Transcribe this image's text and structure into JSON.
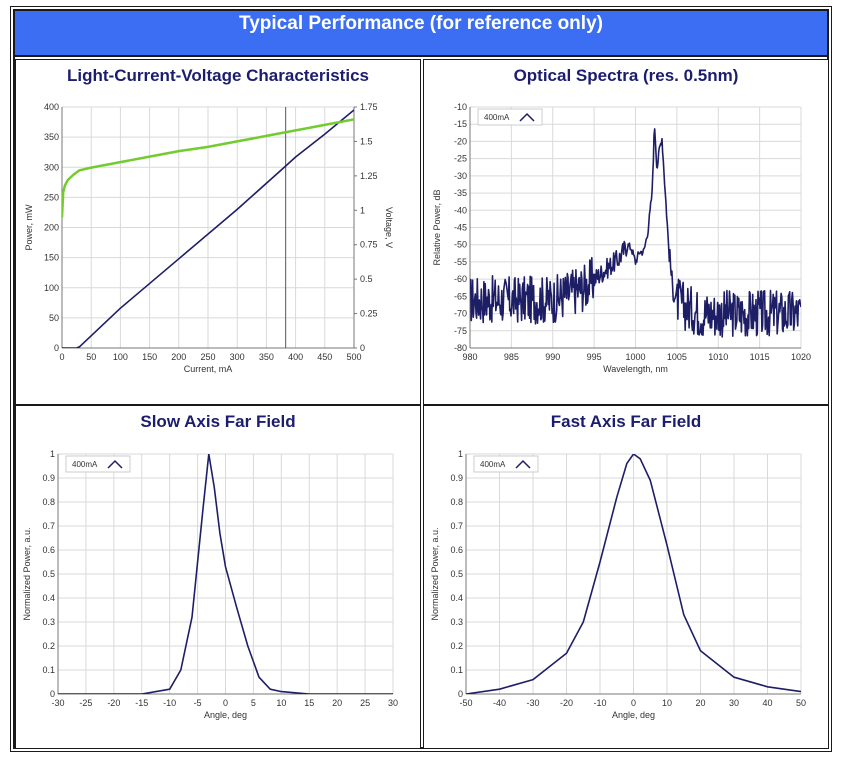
{
  "header": {
    "title": "Typical Performance (for reference only)"
  },
  "colors": {
    "header_bg": "#3b6ef2",
    "title": "#1c1d6e",
    "navy": "#1e1e66",
    "green": "#72cc30",
    "grid": "#d9d9d9"
  },
  "chart_data": [
    {
      "id": "liv",
      "type": "line",
      "title": "Light-Current-Voltage Characteristics",
      "xlabel": "Current, mA",
      "ylabel": "Power, mW",
      "y2label": "Voltage, V",
      "xlim": [
        0,
        500
      ],
      "ylim": [
        0,
        400
      ],
      "y2lim": [
        0,
        1.75
      ],
      "xticks": [
        0,
        50,
        100,
        150,
        200,
        250,
        300,
        350,
        400,
        450,
        500
      ],
      "yticks": [
        0,
        50,
        100,
        150,
        200,
        250,
        300,
        350,
        400
      ],
      "y2ticks": [
        0,
        0.25,
        0.5,
        0.75,
        1,
        1.25,
        1.5,
        1.75
      ],
      "y2tick_labels": [
        "0",
        "0.25",
        "0.5",
        "0.75",
        "1",
        "1.25",
        "1.5",
        "1.75"
      ],
      "marker_x": 383,
      "series": [
        {
          "axis": "y",
          "color": "#1e1e66",
          "x": [
            0,
            25,
            30,
            100,
            200,
            300,
            383,
            400,
            450,
            500
          ],
          "y": [
            0,
            0,
            2,
            66,
            148,
            230,
            302,
            317,
            355,
            395
          ]
        },
        {
          "axis": "y2",
          "color": "#72cc30",
          "x": [
            0,
            2,
            5,
            10,
            20,
            30,
            50,
            100,
            150,
            200,
            250,
            300,
            350,
            400,
            450,
            500
          ],
          "y": [
            0.95,
            1.13,
            1.18,
            1.22,
            1.26,
            1.29,
            1.31,
            1.35,
            1.39,
            1.43,
            1.46,
            1.5,
            1.54,
            1.58,
            1.62,
            1.66
          ]
        }
      ]
    },
    {
      "id": "spectra",
      "type": "line",
      "title": "Optical Spectra (res. 0.5nm)",
      "xlabel": "Wavelength, nm",
      "ylabel": "Relative Power, dB",
      "xlim": [
        980,
        1020
      ],
      "ylim": [
        -80,
        -10
      ],
      "xticks": [
        980,
        985,
        990,
        995,
        1000,
        1005,
        1010,
        1015,
        1020
      ],
      "yticks": [
        -80,
        -75,
        -70,
        -65,
        -60,
        -55,
        -50,
        -45,
        -40,
        -35,
        -30,
        -25,
        -20,
        -15,
        -10
      ],
      "legend": "400mA",
      "series": [
        {
          "name": "400mA",
          "color": "#1e1e66",
          "x": [
            980,
            990,
            994,
            996,
            998,
            999,
            999.5,
            1000,
            1000.5,
            1001,
            1001.5,
            1002,
            1002.3,
            1002.6,
            1002.9,
            1003.2,
            1003.6,
            1004,
            1004.5,
            1005,
            1006,
            1008,
            1020
          ],
          "y": [
            -66,
            -66,
            -62,
            -58,
            -54,
            -50,
            -51,
            -55,
            -52,
            -52,
            -46,
            -35,
            -15,
            -28,
            -22,
            -19,
            -35,
            -50,
            -63,
            -66,
            -68,
            -70,
            -70
          ]
        }
      ]
    },
    {
      "id": "slow",
      "type": "line",
      "title": "Slow Axis Far Field",
      "xlabel": "Angle, deg",
      "ylabel": "Normalized Power, a.u.",
      "xlim": [
        -30,
        30
      ],
      "ylim": [
        0,
        1
      ],
      "xticks": [
        -30,
        -25,
        -20,
        -15,
        -10,
        -5,
        0,
        5,
        10,
        15,
        20,
        25,
        30
      ],
      "yticks": [
        0,
        0.1,
        0.2,
        0.3,
        0.4,
        0.5,
        0.6,
        0.7,
        0.8,
        0.9,
        1
      ],
      "legend": "400mA",
      "series": [
        {
          "name": "400mA",
          "color": "#1e1e66",
          "x": [
            -30,
            -15,
            -10,
            -8,
            -6,
            -4,
            -3,
            -2,
            -1,
            0,
            2,
            4,
            6,
            8,
            10,
            15,
            30
          ],
          "y": [
            0,
            0,
            0.02,
            0.1,
            0.32,
            0.78,
            1.0,
            0.86,
            0.67,
            0.53,
            0.36,
            0.2,
            0.07,
            0.02,
            0.01,
            0,
            0
          ]
        }
      ]
    },
    {
      "id": "fast",
      "type": "line",
      "title": "Fast Axis Far Field",
      "xlabel": "Angle, deg",
      "ylabel": "Normalized Power, a.u.",
      "xlim": [
        -50,
        50
      ],
      "ylim": [
        0,
        1
      ],
      "xticks": [
        -50,
        -40,
        -30,
        -20,
        -10,
        0,
        10,
        20,
        30,
        40,
        50
      ],
      "yticks": [
        0,
        0.1,
        0.2,
        0.3,
        0.4,
        0.5,
        0.6,
        0.7,
        0.8,
        0.9,
        1
      ],
      "legend": "400mA",
      "series": [
        {
          "name": "400mA",
          "color": "#1e1e66",
          "x": [
            -50,
            -40,
            -30,
            -20,
            -15,
            -10,
            -5,
            -2,
            0,
            2,
            5,
            10,
            15,
            20,
            30,
            40,
            50
          ],
          "y": [
            0,
            0.02,
            0.06,
            0.17,
            0.3,
            0.55,
            0.82,
            0.96,
            1.0,
            0.98,
            0.89,
            0.62,
            0.33,
            0.18,
            0.07,
            0.03,
            0.01
          ]
        }
      ]
    }
  ]
}
